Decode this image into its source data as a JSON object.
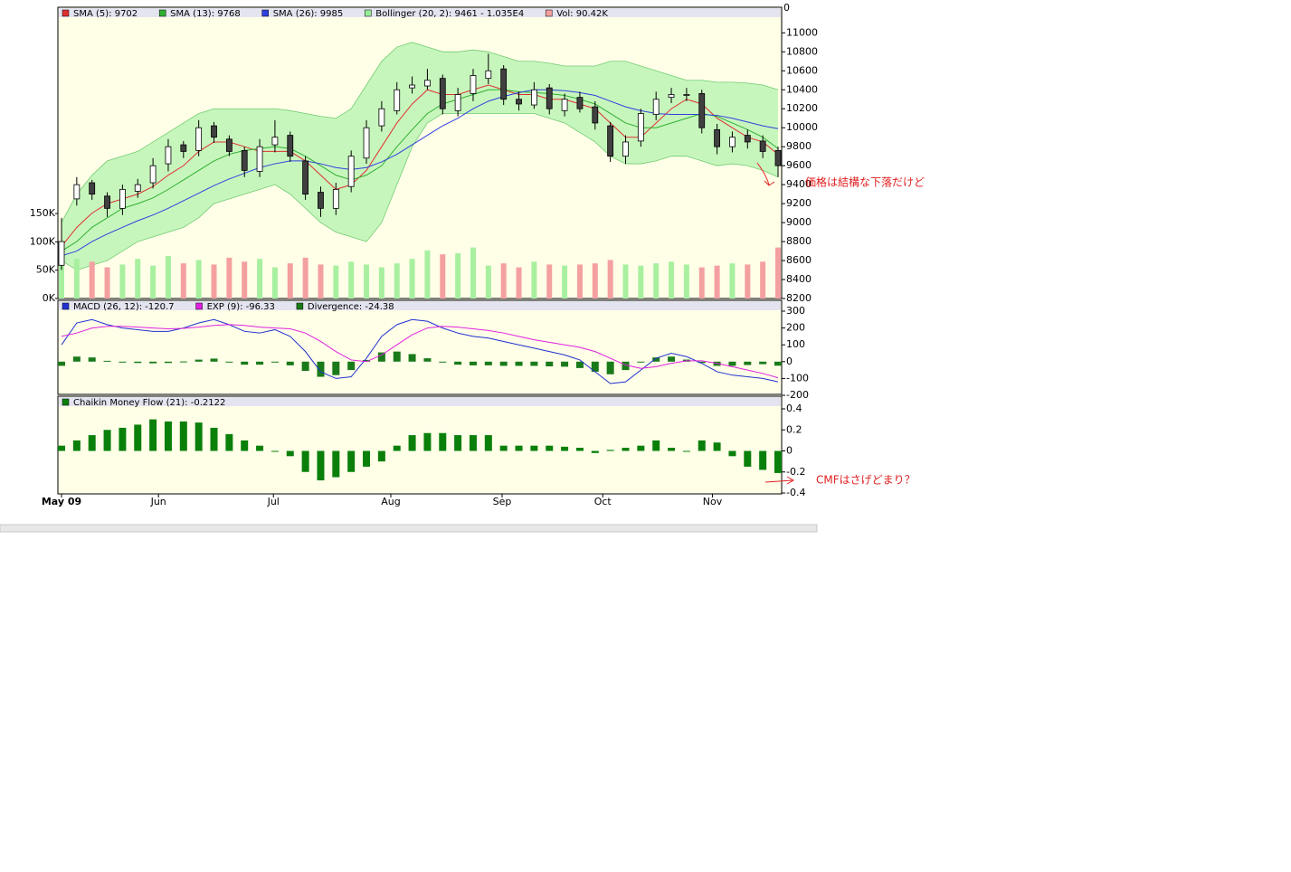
{
  "chart_data": [
    {
      "type": "candlestick",
      "corner_label": "0",
      "annotation": "価格は結構な下落だけど",
      "xlim": [
        0,
        47
      ],
      "ylim": [
        8200,
        11270
      ],
      "yticks": [
        8200,
        8400,
        8600,
        8800,
        9000,
        9200,
        9400,
        9600,
        9800,
        10000,
        10200,
        10400,
        10600,
        10800,
        11000
      ],
      "y2lim": [
        0,
        514
      ],
      "y2ticks": [
        {
          "value": 0,
          "label": "0K"
        },
        {
          "value": 50,
          "label": "50K"
        },
        {
          "value": 100,
          "label": "100K"
        },
        {
          "value": 150,
          "label": "150K"
        }
      ],
      "up_color": "#ffffff",
      "down_color": "#404040",
      "open": [
        8550,
        9250,
        9420,
        9280,
        9150,
        9330,
        9420,
        9620,
        9820,
        9760,
        10020,
        9880,
        9760,
        9540,
        9820,
        9920,
        9650,
        9320,
        9150,
        9380,
        9680,
        10020,
        10180,
        10420,
        10440,
        10520,
        10180,
        10360,
        10520,
        10620,
        10300,
        10240,
        10420,
        10180,
        10320,
        10220,
        10020,
        9700,
        9860,
        10140,
        10320,
        10340,
        10360,
        9980,
        9800,
        9920,
        9860,
        9760
      ],
      "high": [
        9050,
        9480,
        9450,
        9320,
        9400,
        9460,
        9680,
        9880,
        9860,
        10080,
        10060,
        9920,
        9800,
        9880,
        10080,
        9960,
        9700,
        9380,
        9420,
        9760,
        10080,
        10280,
        10480,
        10540,
        10620,
        10560,
        10420,
        10620,
        10780,
        10660,
        10380,
        10480,
        10460,
        10360,
        10380,
        10280,
        10060,
        9920,
        10200,
        10380,
        10420,
        10420,
        10400,
        10040,
        9960,
        9980,
        9920,
        9800
      ],
      "low": [
        8500,
        9180,
        9240,
        9060,
        9080,
        9260,
        9360,
        9540,
        9680,
        9700,
        9840,
        9700,
        9480,
        9480,
        9740,
        9640,
        9240,
        9060,
        9080,
        9320,
        9620,
        9960,
        10140,
        10360,
        10400,
        10140,
        10120,
        10280,
        10460,
        10240,
        10180,
        10200,
        10140,
        10120,
        10160,
        9980,
        9640,
        9620,
        9800,
        10080,
        10260,
        10280,
        9940,
        9720,
        9740,
        9780,
        9680,
        9480
      ],
      "close": [
        8800,
        9400,
        9300,
        9150,
        9350,
        9400,
        9600,
        9800,
        9750,
        10000,
        9900,
        9750,
        9550,
        9800,
        9900,
        9700,
        9300,
        9150,
        9350,
        9700,
        10000,
        10200,
        10400,
        10450,
        10500,
        10200,
        10350,
        10550,
        10600,
        10300,
        10250,
        10400,
        10200,
        10300,
        10200,
        10050,
        9700,
        9850,
        10150,
        10300,
        10350,
        10350,
        10000,
        9800,
        9900,
        9850,
        9750,
        9600
      ],
      "series": [
        {
          "name": "SMA (5): 9702",
          "color": "#e03030",
          "values": [
            8750,
            8950,
            9100,
            9200,
            9250,
            9300,
            9380,
            9500,
            9600,
            9750,
            9850,
            9850,
            9800,
            9750,
            9750,
            9750,
            9650,
            9500,
            9350,
            9400,
            9550,
            9800,
            10050,
            10250,
            10400,
            10350,
            10350,
            10400,
            10450,
            10400,
            10350,
            10350,
            10300,
            10300,
            10250,
            10200,
            10050,
            9900,
            9900,
            10050,
            10200,
            10300,
            10250,
            10100,
            10000,
            9900,
            9850,
            9720
          ]
        },
        {
          "name": "SMA (13): 9768",
          "color": "#30b030",
          "values": [
            8700,
            8800,
            8950,
            9050,
            9150,
            9200,
            9260,
            9350,
            9450,
            9550,
            9650,
            9720,
            9760,
            9780,
            9800,
            9780,
            9700,
            9600,
            9500,
            9450,
            9500,
            9600,
            9800,
            9980,
            10150,
            10250,
            10300,
            10350,
            10400,
            10400,
            10380,
            10370,
            10360,
            10340,
            10300,
            10250,
            10150,
            10050,
            10000,
            10000,
            10050,
            10100,
            10150,
            10120,
            10050,
            9980,
            9900,
            9780
          ]
        },
        {
          "name": "SMA (26): 9985",
          "color": "#3040e0",
          "values": [
            8650,
            8700,
            8800,
            8880,
            8950,
            9020,
            9080,
            9150,
            9230,
            9310,
            9390,
            9460,
            9520,
            9580,
            9620,
            9650,
            9650,
            9620,
            9580,
            9560,
            9580,
            9640,
            9720,
            9820,
            9920,
            10020,
            10100,
            10200,
            10280,
            10330,
            10370,
            10400,
            10400,
            10390,
            10370,
            10340,
            10280,
            10220,
            10180,
            10150,
            10140,
            10140,
            10140,
            10130,
            10100,
            10060,
            10020,
            9990
          ]
        }
      ],
      "bollinger": {
        "name": "Bollinger (20, 2): 9461 - 1.035E4",
        "color": "#99ee99",
        "upper": [
          9000,
          9300,
          9500,
          9650,
          9700,
          9750,
          9850,
          9950,
          10050,
          10150,
          10200,
          10200,
          10200,
          10200,
          10200,
          10180,
          10150,
          10120,
          10100,
          10200,
          10450,
          10700,
          10850,
          10900,
          10850,
          10800,
          10800,
          10820,
          10800,
          10750,
          10700,
          10700,
          10680,
          10650,
          10650,
          10650,
          10700,
          10700,
          10650,
          10600,
          10550,
          10500,
          10500,
          10480,
          10480,
          10470,
          10450,
          10400
        ],
        "lower": [
          8600,
          8500,
          8550,
          8600,
          8700,
          8800,
          8850,
          8900,
          8950,
          9050,
          9200,
          9250,
          9300,
          9350,
          9400,
          9300,
          9150,
          9000,
          8900,
          8850,
          8800,
          9000,
          9400,
          9800,
          10050,
          10150,
          10150,
          10150,
          10150,
          10150,
          10150,
          10150,
          10100,
          10050,
          9950,
          9850,
          9700,
          9620,
          9620,
          9650,
          9700,
          9700,
          9650,
          9600,
          9620,
          9600,
          9550,
          9480
        ]
      },
      "volume": {
        "name": "Vol: 90.42K",
        "axis": "y2",
        "up_color": "#a8f0a0",
        "down_color": "#f4a0a0",
        "values": [
          60,
          70,
          65,
          55,
          60,
          70,
          58,
          75,
          62,
          68,
          60,
          72,
          65,
          70,
          55,
          62,
          72,
          60,
          58,
          65,
          60,
          55,
          62,
          70,
          85,
          78,
          80,
          90,
          58,
          62,
          55,
          65,
          60,
          58,
          60,
          62,
          68,
          60,
          58,
          62,
          65,
          60,
          55,
          58,
          62,
          60,
          65,
          90
        ]
      }
    },
    {
      "type": "macd",
      "xlim": [
        0,
        47
      ],
      "ylim": [
        -200,
        300
      ],
      "yticks": [
        -200,
        -100,
        0,
        100,
        200,
        300
      ],
      "series": [
        {
          "name": "MACD (26, 12): -120.7",
          "color": "#2030d0",
          "kind": "line",
          "values": [
            100,
            230,
            250,
            220,
            200,
            190,
            180,
            180,
            200,
            230,
            250,
            220,
            180,
            170,
            190,
            150,
            60,
            -60,
            -100,
            -90,
            20,
            150,
            220,
            250,
            240,
            200,
            170,
            150,
            140,
            120,
            100,
            80,
            60,
            40,
            10,
            -60,
            -130,
            -120,
            -50,
            20,
            50,
            30,
            -10,
            -60,
            -80,
            -90,
            -100,
            -120
          ]
        },
        {
          "name": "EXP (9): -96.33",
          "color": "#e020e0",
          "kind": "line",
          "values": [
            150,
            170,
            200,
            210,
            210,
            205,
            200,
            195,
            198,
            205,
            215,
            220,
            215,
            205,
            200,
            195,
            170,
            120,
            60,
            10,
            0,
            40,
            100,
            160,
            200,
            210,
            205,
            195,
            185,
            170,
            150,
            130,
            115,
            100,
            85,
            60,
            20,
            -20,
            -40,
            -30,
            -10,
            5,
            5,
            -10,
            -30,
            -50,
            -70,
            -96
          ]
        },
        {
          "name": "Divergence: -24.38",
          "color": "#1a7a1a",
          "kind": "bar",
          "values": [
            -25,
            30,
            25,
            5,
            -5,
            -8,
            -10,
            -8,
            1,
            12,
            18,
            0,
            -18,
            -18,
            -5,
            -22,
            -55,
            -90,
            -80,
            -50,
            10,
            55,
            60,
            45,
            20,
            -5,
            -18,
            -22,
            -22,
            -25,
            -25,
            -25,
            -28,
            -30,
            -38,
            -60,
            -75,
            -50,
            -5,
            25,
            30,
            12,
            -8,
            -25,
            -25,
            -20,
            -15,
            -24
          ]
        }
      ]
    },
    {
      "type": "bar",
      "annotation": "CMFはさげどまり？",
      "xlim": [
        0,
        47
      ],
      "ylim": [
        -0.4,
        0.4
      ],
      "yticks": [
        -0.4,
        -0.2,
        0,
        0.2,
        0.4
      ],
      "xticks": [
        {
          "value": 0,
          "label": "May 09"
        },
        {
          "value": 6.36,
          "label": "Jun"
        },
        {
          "value": 13.9,
          "label": "Jul"
        },
        {
          "value": 21.6,
          "label": "Aug"
        },
        {
          "value": 28.9,
          "label": "Sep"
        },
        {
          "value": 35.5,
          "label": "Oct"
        },
        {
          "value": 42.7,
          "label": "Nov"
        }
      ],
      "series": [
        {
          "name": "Chaikin Money Flow (21): -0.2122",
          "color": "#0a800a",
          "values": [
            0.05,
            0.1,
            0.15,
            0.2,
            0.22,
            0.25,
            0.3,
            0.28,
            0.28,
            0.27,
            0.22,
            0.16,
            0.1,
            0.05,
            0,
            -0.05,
            -0.2,
            -0.28,
            -0.25,
            -0.2,
            -0.15,
            -0.1,
            0.05,
            0.15,
            0.17,
            0.17,
            0.15,
            0.15,
            0.15,
            0.05,
            0.05,
            0.05,
            0.05,
            0.04,
            0.03,
            -0.02,
            0.01,
            0.03,
            0.05,
            0.1,
            0.03,
            0,
            0.1,
            0.08,
            -0.05,
            -0.15,
            -0.18,
            -0.21
          ]
        }
      ]
    }
  ]
}
